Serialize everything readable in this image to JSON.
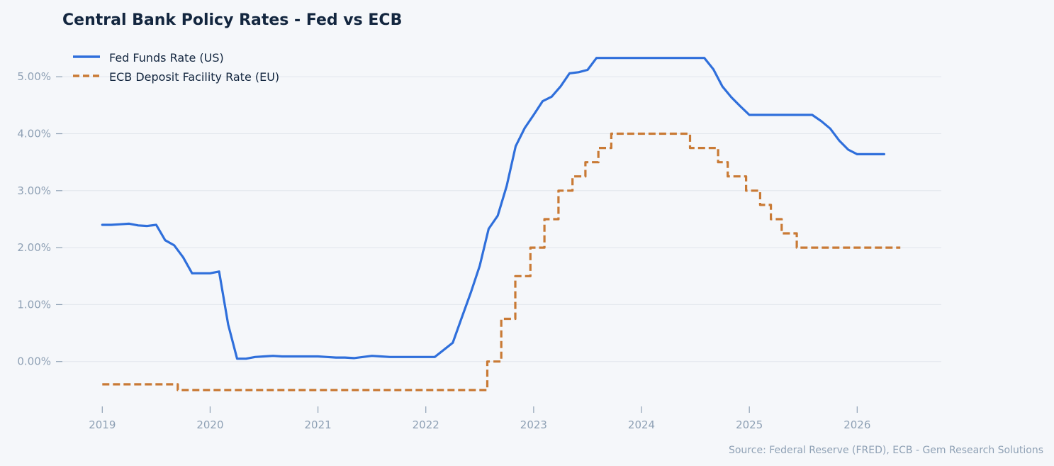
{
  "chart_data": {
    "type": "line",
    "title": "Central Bank Policy Rates - Fed vs ECB",
    "xlabel": "",
    "ylabel": "",
    "source": "Source: Federal Reserve (FRED), ECB - Gem Research Solutions",
    "x_ticks": [
      {
        "value": 2019,
        "label": "2019"
      },
      {
        "value": 2020,
        "label": "2020"
      },
      {
        "value": 2021,
        "label": "2021"
      },
      {
        "value": 2022,
        "label": "2022"
      },
      {
        "value": 2023,
        "label": "2023"
      },
      {
        "value": 2024,
        "label": "2024"
      },
      {
        "value": 2025,
        "label": "2025"
      },
      {
        "value": 2026,
        "label": "2026"
      }
    ],
    "y_ticks": [
      {
        "value": 0,
        "label": "0.00%"
      },
      {
        "value": 1,
        "label": "1.00%"
      },
      {
        "value": 2,
        "label": "2.00%"
      },
      {
        "value": 3,
        "label": "3.00%"
      },
      {
        "value": 4,
        "label": "4.00%"
      },
      {
        "value": 5,
        "label": "5.00%"
      }
    ],
    "xlim": [
      2018.63,
      2026.78
    ],
    "ylim": [
      -0.85,
      5.6
    ],
    "grid": true,
    "legend_position": "top-left",
    "series": [
      {
        "name": "Fed Funds Rate (US)",
        "color": "#2f6fdb",
        "style": "solid",
        "points": [
          [
            2019.0,
            2.4
          ],
          [
            2019.083,
            2.4
          ],
          [
            2019.167,
            2.41
          ],
          [
            2019.25,
            2.42
          ],
          [
            2019.333,
            2.39
          ],
          [
            2019.417,
            2.38
          ],
          [
            2019.5,
            2.4
          ],
          [
            2019.583,
            2.13
          ],
          [
            2019.667,
            2.04
          ],
          [
            2019.75,
            1.83
          ],
          [
            2019.833,
            1.55
          ],
          [
            2019.917,
            1.55
          ],
          [
            2020.0,
            1.55
          ],
          [
            2020.083,
            1.58
          ],
          [
            2020.167,
            0.65
          ],
          [
            2020.25,
            0.05
          ],
          [
            2020.333,
            0.05
          ],
          [
            2020.417,
            0.08
          ],
          [
            2020.5,
            0.09
          ],
          [
            2020.583,
            0.1
          ],
          [
            2020.667,
            0.09
          ],
          [
            2020.75,
            0.09
          ],
          [
            2020.833,
            0.09
          ],
          [
            2020.917,
            0.09
          ],
          [
            2021.0,
            0.09
          ],
          [
            2021.083,
            0.08
          ],
          [
            2021.167,
            0.07
          ],
          [
            2021.25,
            0.07
          ],
          [
            2021.333,
            0.06
          ],
          [
            2021.417,
            0.08
          ],
          [
            2021.5,
            0.1
          ],
          [
            2021.583,
            0.09
          ],
          [
            2021.667,
            0.08
          ],
          [
            2021.75,
            0.08
          ],
          [
            2021.833,
            0.08
          ],
          [
            2021.917,
            0.08
          ],
          [
            2022.0,
            0.08
          ],
          [
            2022.083,
            0.08
          ],
          [
            2022.25,
            0.33
          ],
          [
            2022.333,
            0.77
          ],
          [
            2022.417,
            1.21
          ],
          [
            2022.5,
            1.68
          ],
          [
            2022.583,
            2.33
          ],
          [
            2022.667,
            2.56
          ],
          [
            2022.75,
            3.08
          ],
          [
            2022.833,
            3.78
          ],
          [
            2022.917,
            4.1
          ],
          [
            2023.0,
            4.33
          ],
          [
            2023.083,
            4.57
          ],
          [
            2023.167,
            4.65
          ],
          [
            2023.25,
            4.83
          ],
          [
            2023.333,
            5.06
          ],
          [
            2023.417,
            5.08
          ],
          [
            2023.5,
            5.12
          ],
          [
            2023.583,
            5.33
          ],
          [
            2023.667,
            5.33
          ],
          [
            2023.75,
            5.33
          ],
          [
            2023.833,
            5.33
          ],
          [
            2023.917,
            5.33
          ],
          [
            2024.0,
            5.33
          ],
          [
            2024.083,
            5.33
          ],
          [
            2024.167,
            5.33
          ],
          [
            2024.25,
            5.33
          ],
          [
            2024.333,
            5.33
          ],
          [
            2024.417,
            5.33
          ],
          [
            2024.5,
            5.33
          ],
          [
            2024.583,
            5.33
          ],
          [
            2024.667,
            5.13
          ],
          [
            2024.75,
            4.83
          ],
          [
            2024.833,
            4.64
          ],
          [
            2024.917,
            4.48
          ],
          [
            2025.0,
            4.33
          ],
          [
            2025.083,
            4.33
          ],
          [
            2025.167,
            4.33
          ],
          [
            2025.25,
            4.33
          ],
          [
            2025.333,
            4.33
          ],
          [
            2025.417,
            4.33
          ],
          [
            2025.5,
            4.33
          ],
          [
            2025.583,
            4.33
          ],
          [
            2025.667,
            4.22
          ],
          [
            2025.75,
            4.09
          ],
          [
            2025.833,
            3.88
          ],
          [
            2025.917,
            3.72
          ],
          [
            2026.0,
            3.64
          ],
          [
            2026.083,
            3.64
          ],
          [
            2026.167,
            3.64
          ],
          [
            2026.25,
            3.64
          ]
        ]
      },
      {
        "name": "ECB Deposit Facility Rate (EU)",
        "color": "#c97a35",
        "style": "dashed",
        "step": true,
        "points": [
          [
            2019.0,
            -0.4
          ],
          [
            2019.7,
            -0.5
          ],
          [
            2022.57,
            0.0
          ],
          [
            2022.7,
            0.75
          ],
          [
            2022.83,
            1.5
          ],
          [
            2022.97,
            2.0
          ],
          [
            2023.1,
            2.5
          ],
          [
            2023.23,
            3.0
          ],
          [
            2023.36,
            3.25
          ],
          [
            2023.48,
            3.5
          ],
          [
            2023.6,
            3.75
          ],
          [
            2023.72,
            4.0
          ],
          [
            2024.45,
            3.75
          ],
          [
            2024.71,
            3.5
          ],
          [
            2024.8,
            3.25
          ],
          [
            2024.97,
            3.0
          ],
          [
            2025.1,
            2.75
          ],
          [
            2025.2,
            2.5
          ],
          [
            2025.3,
            2.25
          ],
          [
            2025.44,
            2.0
          ],
          [
            2026.4,
            2.0
          ]
        ]
      }
    ]
  }
}
